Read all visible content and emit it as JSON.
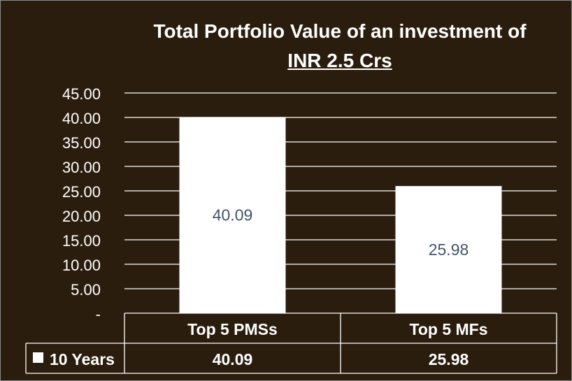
{
  "chart_data": {
    "type": "bar",
    "title_lines": [
      "Total Portfolio Value of an investment of",
      "INR 2.5 Crs"
    ],
    "categories": [
      "Top 5 PMSs",
      "Top 5 MFs"
    ],
    "series": [
      {
        "name": "10 Years",
        "values": [
          40.09,
          25.98
        ],
        "labels": [
          "40.09",
          "25.98"
        ]
      }
    ],
    "ylim": [
      0,
      45
    ],
    "yticks": [
      0,
      5,
      10,
      15,
      20,
      25,
      30,
      35,
      40,
      45
    ],
    "ytick_labels": [
      "-",
      "5.00",
      "10.00",
      "15.00",
      "20.00",
      "25.00",
      "30.00",
      "35.00",
      "40.00",
      "45.00"
    ],
    "grid": true,
    "data_table": true,
    "colors": {
      "background": "#2b1d0e",
      "bar": "#ffffff",
      "grid": "#ffffff",
      "text": "#ffffff",
      "data_label": "#44546a"
    }
  }
}
